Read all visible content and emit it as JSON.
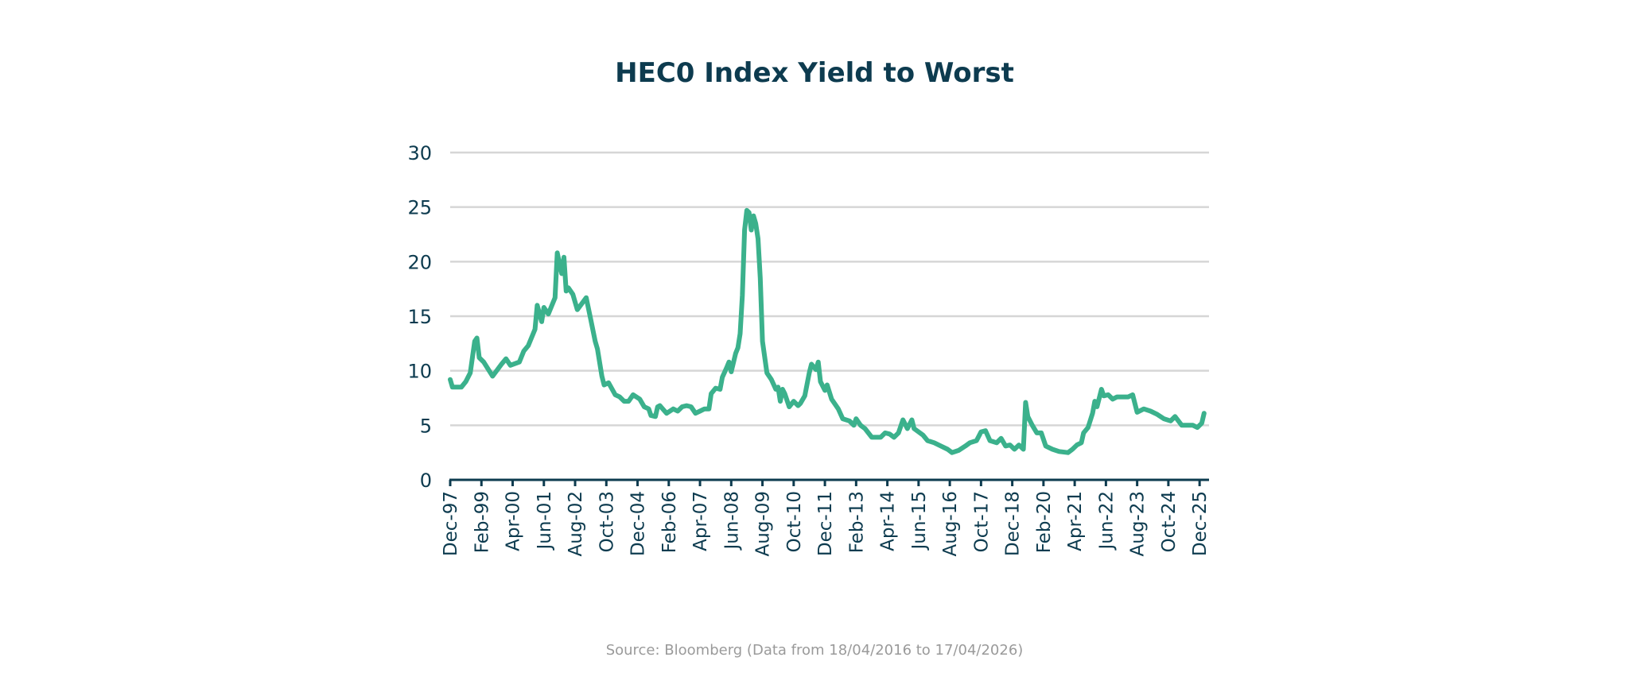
{
  "colors": {
    "line": "#3bb18c",
    "axis": "#0d3b4f",
    "grid": "#d6d6d6",
    "title": "#0d3b4f",
    "source": "#9a9a9a"
  },
  "source_note": "Source: Bloomberg (Data from 18/04/2016 to 17/04/2026)",
  "chart_data": {
    "type": "line",
    "title": "HEC0 Index Yield to Worst",
    "xlabel": "",
    "ylabel": "",
    "ylim": [
      0,
      30
    ],
    "yticks": [
      0,
      5,
      10,
      15,
      20,
      25,
      30
    ],
    "xlim": [
      "1997-12",
      "2026-04"
    ],
    "grid": true,
    "legend": "none",
    "xticks": [
      {
        "date": "1997-12",
        "label": "Dec-97"
      },
      {
        "date": "1999-02",
        "label": "Feb-99"
      },
      {
        "date": "2000-04",
        "label": "Apr-00"
      },
      {
        "date": "2001-06",
        "label": "Jun-01"
      },
      {
        "date": "2002-08",
        "label": "Aug-02"
      },
      {
        "date": "2003-10",
        "label": "Oct-03"
      },
      {
        "date": "2004-12",
        "label": "Dec-04"
      },
      {
        "date": "2006-02",
        "label": "Feb-06"
      },
      {
        "date": "2007-04",
        "label": "Apr-07"
      },
      {
        "date": "2008-06",
        "label": "Jun-08"
      },
      {
        "date": "2009-08",
        "label": "Aug-09"
      },
      {
        "date": "2010-10",
        "label": "Oct-10"
      },
      {
        "date": "2011-12",
        "label": "Dec-11"
      },
      {
        "date": "2013-02",
        "label": "Feb-13"
      },
      {
        "date": "2014-04",
        "label": "Apr-14"
      },
      {
        "date": "2015-06",
        "label": "Jun-15"
      },
      {
        "date": "2016-08",
        "label": "Aug-16"
      },
      {
        "date": "2017-10",
        "label": "Oct-17"
      },
      {
        "date": "2018-12",
        "label": "Dec-18"
      },
      {
        "date": "2020-02",
        "label": "Feb-20"
      },
      {
        "date": "2021-04",
        "label": "Apr-21"
      },
      {
        "date": "2022-06",
        "label": "Jun-22"
      },
      {
        "date": "2023-08",
        "label": "Aug-23"
      },
      {
        "date": "2024-10",
        "label": "Oct-24"
      },
      {
        "date": "2025-12",
        "label": "Dec-25"
      }
    ],
    "series": [
      {
        "name": "HEC0 Index Yield to Worst",
        "points": [
          [
            "1997-12",
            9.2
          ],
          [
            "1998-01",
            8.5
          ],
          [
            "1998-05",
            8.5
          ],
          [
            "1998-07",
            9.0
          ],
          [
            "1998-09",
            9.8
          ],
          [
            "1998-11",
            12.7
          ],
          [
            "1998-12",
            13.0
          ],
          [
            "1999-01",
            11.2
          ],
          [
            "1999-03",
            10.8
          ],
          [
            "1999-07",
            9.5
          ],
          [
            "1999-11",
            10.6
          ],
          [
            "2000-01",
            11.1
          ],
          [
            "2000-03",
            10.5
          ],
          [
            "2000-07",
            10.8
          ],
          [
            "2000-09",
            11.8
          ],
          [
            "2000-11",
            12.3
          ],
          [
            "2001-02",
            13.8
          ],
          [
            "2001-03",
            16.0
          ],
          [
            "2001-05",
            14.5
          ],
          [
            "2001-06",
            15.8
          ],
          [
            "2001-08",
            15.2
          ],
          [
            "2001-11",
            16.7
          ],
          [
            "2001-12",
            20.8
          ],
          [
            "2002-02",
            18.9
          ],
          [
            "2002-03",
            20.4
          ],
          [
            "2002-04",
            17.3
          ],
          [
            "2002-05",
            17.6
          ],
          [
            "2002-07",
            17.0
          ],
          [
            "2002-09",
            15.6
          ],
          [
            "2003-01",
            16.7
          ],
          [
            "2003-03",
            14.7
          ],
          [
            "2003-05",
            12.7
          ],
          [
            "2003-06",
            12.0
          ],
          [
            "2003-08",
            9.5
          ],
          [
            "2003-09",
            8.7
          ],
          [
            "2003-11",
            8.9
          ],
          [
            "2004-02",
            7.8
          ],
          [
            "2004-04",
            7.6
          ],
          [
            "2004-06",
            7.2
          ],
          [
            "2004-08",
            7.2
          ],
          [
            "2004-10",
            7.8
          ],
          [
            "2005-01",
            7.4
          ],
          [
            "2005-03",
            6.7
          ],
          [
            "2005-05",
            6.5
          ],
          [
            "2005-06",
            5.9
          ],
          [
            "2005-08",
            5.8
          ],
          [
            "2005-09",
            6.7
          ],
          [
            "2005-10",
            6.8
          ],
          [
            "2006-01",
            6.1
          ],
          [
            "2006-04",
            6.5
          ],
          [
            "2006-06",
            6.3
          ],
          [
            "2006-08",
            6.7
          ],
          [
            "2006-10",
            6.8
          ],
          [
            "2006-12",
            6.7
          ],
          [
            "2007-02",
            6.1
          ],
          [
            "2007-04",
            6.3
          ],
          [
            "2007-06",
            6.5
          ],
          [
            "2007-08",
            6.5
          ],
          [
            "2007-09",
            7.9
          ],
          [
            "2007-11",
            8.4
          ],
          [
            "2008-01",
            8.3
          ],
          [
            "2008-02",
            9.4
          ],
          [
            "2008-04",
            10.3
          ],
          [
            "2008-05",
            10.8
          ],
          [
            "2008-06",
            9.9
          ],
          [
            "2008-08",
            11.6
          ],
          [
            "2008-09",
            12.1
          ],
          [
            "2008-10",
            13.4
          ],
          [
            "2008-11",
            16.9
          ],
          [
            "2008-12",
            22.9
          ],
          [
            "2009-01",
            24.7
          ],
          [
            "2009-02",
            24.5
          ],
          [
            "2009-03",
            22.9
          ],
          [
            "2009-04",
            24.2
          ],
          [
            "2009-05",
            23.5
          ],
          [
            "2009-06",
            22.1
          ],
          [
            "2009-07",
            18.5
          ],
          [
            "2009-08",
            12.7
          ],
          [
            "2009-10",
            9.8
          ],
          [
            "2009-12",
            9.2
          ],
          [
            "2010-02",
            8.3
          ],
          [
            "2010-03",
            8.5
          ],
          [
            "2010-04",
            7.2
          ],
          [
            "2010-05",
            8.3
          ],
          [
            "2010-06",
            7.9
          ],
          [
            "2010-08",
            6.7
          ],
          [
            "2010-10",
            7.2
          ],
          [
            "2010-12",
            6.8
          ],
          [
            "2011-01",
            7.0
          ],
          [
            "2011-03",
            7.7
          ],
          [
            "2011-05",
            9.8
          ],
          [
            "2011-06",
            10.6
          ],
          [
            "2011-08",
            10.1
          ],
          [
            "2011-09",
            10.8
          ],
          [
            "2011-10",
            9.0
          ],
          [
            "2011-12",
            8.2
          ],
          [
            "2012-01",
            8.7
          ],
          [
            "2012-03",
            7.4
          ],
          [
            "2012-06",
            6.5
          ],
          [
            "2012-08",
            5.6
          ],
          [
            "2012-11",
            5.4
          ],
          [
            "2013-01",
            5.0
          ],
          [
            "2013-02",
            5.6
          ],
          [
            "2013-04",
            5.0
          ],
          [
            "2013-06",
            4.7
          ],
          [
            "2013-09",
            3.9
          ],
          [
            "2014-01",
            3.9
          ],
          [
            "2014-03",
            4.3
          ],
          [
            "2014-05",
            4.2
          ],
          [
            "2014-07",
            3.9
          ],
          [
            "2014-09",
            4.3
          ],
          [
            "2014-11",
            5.5
          ],
          [
            "2015-01",
            4.7
          ],
          [
            "2015-03",
            5.5
          ],
          [
            "2015-04",
            4.7
          ],
          [
            "2015-08",
            4.1
          ],
          [
            "2015-10",
            3.6
          ],
          [
            "2016-01",
            3.4
          ],
          [
            "2016-04",
            3.1
          ],
          [
            "2016-07",
            2.8
          ],
          [
            "2016-09",
            2.5
          ],
          [
            "2016-12",
            2.7
          ],
          [
            "2017-03",
            3.1
          ],
          [
            "2017-05",
            3.4
          ],
          [
            "2017-08",
            3.6
          ],
          [
            "2017-10",
            4.4
          ],
          [
            "2017-12",
            4.5
          ],
          [
            "2018-02",
            3.6
          ],
          [
            "2018-05",
            3.4
          ],
          [
            "2018-07",
            3.8
          ],
          [
            "2018-09",
            3.1
          ],
          [
            "2018-11",
            3.2
          ],
          [
            "2019-01",
            2.8
          ],
          [
            "2019-03",
            3.2
          ],
          [
            "2019-05",
            2.8
          ],
          [
            "2019-06",
            7.1
          ],
          [
            "2019-07",
            5.8
          ],
          [
            "2019-09",
            5.0
          ],
          [
            "2019-11",
            4.3
          ],
          [
            "2020-01",
            4.3
          ],
          [
            "2020-03",
            3.1
          ],
          [
            "2020-06",
            2.8
          ],
          [
            "2020-09",
            2.6
          ],
          [
            "2021-01",
            2.5
          ],
          [
            "2021-03",
            2.8
          ],
          [
            "2021-05",
            3.2
          ],
          [
            "2021-07",
            3.4
          ],
          [
            "2021-08",
            4.3
          ],
          [
            "2021-10",
            4.8
          ],
          [
            "2021-12",
            6.1
          ],
          [
            "2022-01",
            7.2
          ],
          [
            "2022-02",
            6.7
          ],
          [
            "2022-04",
            8.3
          ],
          [
            "2022-05",
            7.7
          ],
          [
            "2022-07",
            7.8
          ],
          [
            "2022-09",
            7.4
          ],
          [
            "2022-11",
            7.6
          ],
          [
            "2023-01",
            7.6
          ],
          [
            "2023-04",
            7.6
          ],
          [
            "2023-06",
            7.8
          ],
          [
            "2023-08",
            6.2
          ],
          [
            "2023-11",
            6.5
          ],
          [
            "2024-02",
            6.3
          ],
          [
            "2024-05",
            6.0
          ],
          [
            "2024-08",
            5.6
          ],
          [
            "2024-11",
            5.4
          ],
          [
            "2025-01",
            5.8
          ],
          [
            "2025-04",
            5.0
          ],
          [
            "2025-07",
            5.0
          ],
          [
            "2025-09",
            5.0
          ],
          [
            "2025-11",
            4.8
          ],
          [
            "2026-01",
            5.2
          ],
          [
            "2026-02",
            6.1
          ]
        ]
      }
    ]
  }
}
